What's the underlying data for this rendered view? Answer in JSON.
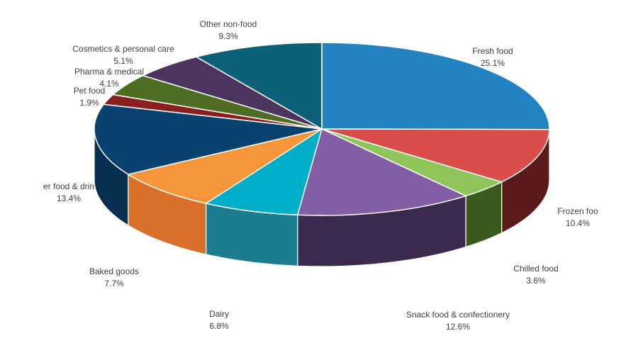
{
  "chart_data": {
    "type": "pie",
    "title": "",
    "slices": [
      {
        "label": "Fresh food",
        "display_label": "Fresh food",
        "value": 25.1,
        "display_value": "25.1%",
        "color": "#2383c1",
        "side_color": "#175c88"
      },
      {
        "label": "Frozen food",
        "display_label": "Frozen foo",
        "value": 10.4,
        "display_value": "10.4%",
        "color": "#db4d4a",
        "side_color": "#5a1b1a"
      },
      {
        "label": "Chilled food",
        "display_label": "Chilled food",
        "value": 3.6,
        "display_value": "3.6%",
        "color": "#8fc45a",
        "side_color": "#3a5a1e"
      },
      {
        "label": "Snack food & confectionery",
        "display_label": "Snack food & confectionery",
        "value": 12.6,
        "display_value": "12.6%",
        "color": "#845ea4",
        "side_color": "#3c2a4e"
      },
      {
        "label": "Dairy",
        "display_label": "Dairy",
        "value": 6.8,
        "display_value": "6.8%",
        "color": "#00aec8",
        "side_color": "#1c7d8f"
      },
      {
        "label": "Baked goods",
        "display_label": "Baked goods",
        "value": 7.7,
        "display_value": "7.7%",
        "color": "#f7953b",
        "side_color": "#d9712a"
      },
      {
        "label": "Other food & drink",
        "display_label": "er food & drin",
        "value": 13.4,
        "display_value": "13.4%",
        "color": "#08426e",
        "side_color": "#062f4f"
      },
      {
        "label": "Pet food",
        "display_label": "Pet food",
        "value": 1.9,
        "display_value": "1.9%",
        "color": "#8a1f1f",
        "side_color": "#5a1414"
      },
      {
        "label": "Pharma & medical",
        "display_label": "Pharma & medical",
        "value": 4.1,
        "display_value": "4.1%",
        "color": "#4e6d22",
        "side_color": "#33481a"
      },
      {
        "label": "Cosmetics & personal care",
        "display_label": "Cosmetics & personal care",
        "value": 5.1,
        "display_value": "5.1%",
        "color": "#4a3560",
        "side_color": "#2e2140"
      },
      {
        "label": "Other non-food",
        "display_label": "Other non-food",
        "value": 9.3,
        "display_value": "9.3%",
        "color": "#0c6179",
        "side_color": "#084455"
      }
    ],
    "start": "12 o'clock",
    "direction": "clockwise",
    "style": "3d-perspective",
    "legend": "none"
  }
}
